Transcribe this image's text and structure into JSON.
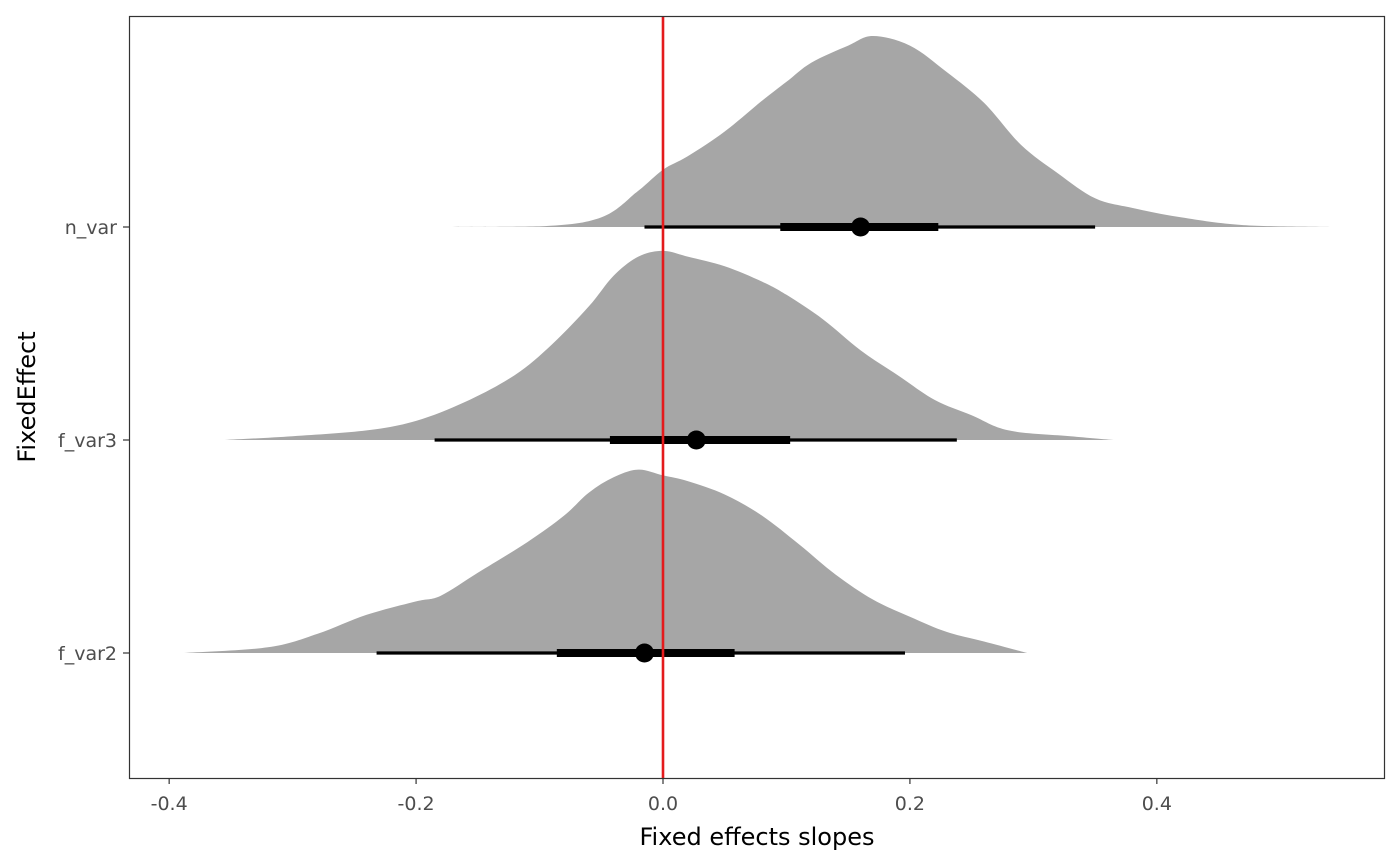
{
  "chart_data": {
    "type": "halfeye",
    "title": "",
    "xlabel": "Fixed effects slopes",
    "ylabel": "FixedEffect",
    "xlim": [
      -0.43,
      0.9
    ],
    "x_ticks": [
      -0.4,
      -0.2,
      0.0,
      0.2,
      0.4
    ],
    "x_tick_labels": [
      "-0.4",
      "-0.2",
      "0.0",
      "0.2",
      "0.4"
    ],
    "grid": false,
    "reference_line": {
      "x": 0.0,
      "color": "#e41a1c"
    },
    "density_color": "#a6a6a6",
    "interval_color": "#000000",
    "categories": [
      "n_var",
      "f_var3",
      "f_var2"
    ],
    "series": [
      {
        "category": "n_var",
        "median": 0.16,
        "interval_66": [
          0.095,
          0.223
        ],
        "interval_95": [
          -0.015,
          0.35
        ],
        "density": [
          [
            -0.2,
            0.0
          ],
          [
            -0.1,
            0.003
          ],
          [
            -0.05,
            0.05
          ],
          [
            -0.02,
            0.19
          ],
          [
            0.0,
            0.3
          ],
          [
            0.02,
            0.37
          ],
          [
            0.05,
            0.5
          ],
          [
            0.08,
            0.66
          ],
          [
            0.1,
            0.76
          ],
          [
            0.12,
            0.86
          ],
          [
            0.15,
            0.95
          ],
          [
            0.17,
            1.0
          ],
          [
            0.2,
            0.95
          ],
          [
            0.23,
            0.81
          ],
          [
            0.26,
            0.65
          ],
          [
            0.29,
            0.43
          ],
          [
            0.32,
            0.28
          ],
          [
            0.35,
            0.15
          ],
          [
            0.38,
            0.1
          ],
          [
            0.42,
            0.05
          ],
          [
            0.47,
            0.01
          ],
          [
            0.54,
            0.0
          ]
        ]
      },
      {
        "category": "f_var3",
        "median": 0.027,
        "interval_66": [
          -0.043,
          0.103
        ],
        "interval_95": [
          -0.185,
          0.238
        ],
        "density": [
          [
            -0.355,
            0.0
          ],
          [
            -0.3,
            0.02
          ],
          [
            -0.24,
            0.05
          ],
          [
            -0.2,
            0.1
          ],
          [
            -0.16,
            0.2
          ],
          [
            -0.12,
            0.34
          ],
          [
            -0.09,
            0.5
          ],
          [
            -0.06,
            0.7
          ],
          [
            -0.04,
            0.86
          ],
          [
            -0.02,
            0.96
          ],
          [
            0.0,
            0.99
          ],
          [
            0.02,
            0.96
          ],
          [
            0.05,
            0.91
          ],
          [
            0.08,
            0.83
          ],
          [
            0.1,
            0.76
          ],
          [
            0.13,
            0.63
          ],
          [
            0.16,
            0.47
          ],
          [
            0.19,
            0.34
          ],
          [
            0.22,
            0.21
          ],
          [
            0.25,
            0.13
          ],
          [
            0.28,
            0.05
          ],
          [
            0.33,
            0.02
          ],
          [
            0.365,
            0.0
          ]
        ]
      },
      {
        "category": "f_var2",
        "median": -0.015,
        "interval_66": [
          -0.086,
          0.058
        ],
        "interval_95": [
          -0.232,
          0.196
        ],
        "density": [
          [
            -0.388,
            0.0
          ],
          [
            -0.32,
            0.03
          ],
          [
            -0.28,
            0.1
          ],
          [
            -0.24,
            0.2
          ],
          [
            -0.2,
            0.27
          ],
          [
            -0.18,
            0.3
          ],
          [
            -0.15,
            0.42
          ],
          [
            -0.11,
            0.58
          ],
          [
            -0.08,
            0.72
          ],
          [
            -0.06,
            0.84
          ],
          [
            -0.04,
            0.92
          ],
          [
            -0.02,
            0.96
          ],
          [
            0.0,
            0.93
          ],
          [
            0.02,
            0.9
          ],
          [
            0.05,
            0.83
          ],
          [
            0.08,
            0.72
          ],
          [
            0.11,
            0.57
          ],
          [
            0.14,
            0.41
          ],
          [
            0.17,
            0.28
          ],
          [
            0.2,
            0.19
          ],
          [
            0.23,
            0.11
          ],
          [
            0.26,
            0.06
          ],
          [
            0.295,
            0.0
          ]
        ]
      }
    ]
  }
}
